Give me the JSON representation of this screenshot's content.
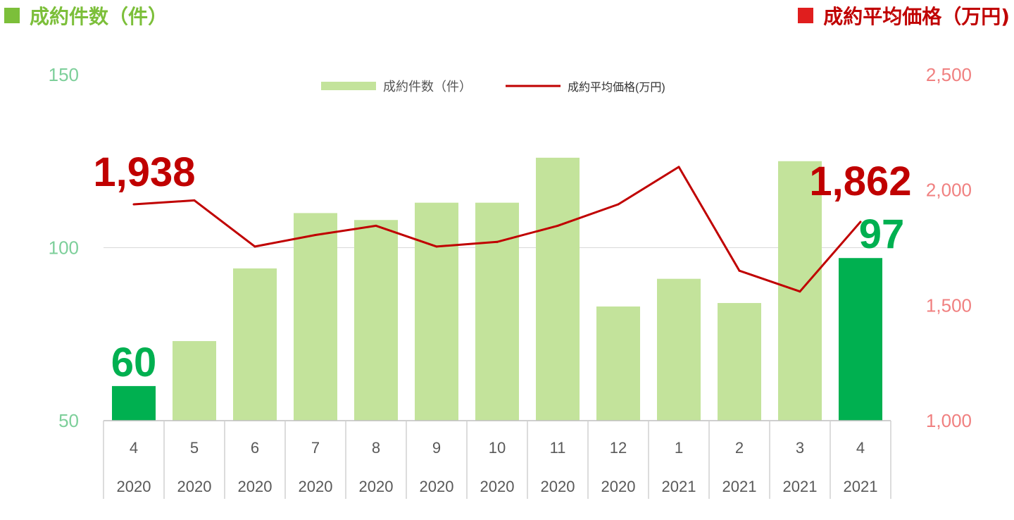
{
  "header": {
    "left_title": "成約件数（件）",
    "right_title": "成約平均価格（万円)"
  },
  "legend": {
    "bars_label": "成約件数（件）",
    "line_label": "成約平均価格(万円)"
  },
  "colors": {
    "bar": "#c3e39b",
    "bar_highlight": "#00b050",
    "line": "#c00000",
    "left_axis": "#7dcf9a",
    "right_axis": "#f08080",
    "header_left": "#7cbf3a",
    "header_right": "#c00000"
  },
  "chart_data": {
    "type": "bar",
    "categories": [
      [
        "4",
        "2020"
      ],
      [
        "5",
        "2020"
      ],
      [
        "6",
        "2020"
      ],
      [
        "7",
        "2020"
      ],
      [
        "8",
        "2020"
      ],
      [
        "9",
        "2020"
      ],
      [
        "10",
        "2020"
      ],
      [
        "11",
        "2020"
      ],
      [
        "12",
        "2020"
      ],
      [
        "1",
        "2021"
      ],
      [
        "2",
        "2021"
      ],
      [
        "3",
        "2021"
      ],
      [
        "4",
        "2021"
      ]
    ],
    "series": [
      {
        "name": "成約件数（件）",
        "type": "bar",
        "axis": "left",
        "values": [
          60,
          73,
          94,
          110,
          108,
          113,
          113,
          126,
          83,
          91,
          84,
          125,
          97
        ],
        "highlight": [
          0,
          12
        ]
      },
      {
        "name": "成約平均価格(万円)",
        "type": "line",
        "axis": "right",
        "values": [
          1938,
          1955,
          1755,
          1805,
          1845,
          1755,
          1775,
          1845,
          1938,
          2100,
          1650,
          1560,
          1862
        ]
      }
    ],
    "left_axis": {
      "range": [
        50,
        150
      ],
      "ticks": [
        "50",
        "100",
        "150"
      ]
    },
    "right_axis": {
      "range": [
        1000,
        2500
      ],
      "ticks": [
        "1,000",
        "1,500",
        "2,000",
        "2,500"
      ]
    },
    "annotations": [
      {
        "series": 0,
        "index": 0,
        "text": "60"
      },
      {
        "series": 0,
        "index": 12,
        "text": "97"
      },
      {
        "series": 1,
        "index": 0,
        "text": "1,938"
      },
      {
        "series": 1,
        "index": 12,
        "text": "1,862"
      }
    ],
    "grid": "horizontal at 100",
    "legend_position": "top-center"
  }
}
